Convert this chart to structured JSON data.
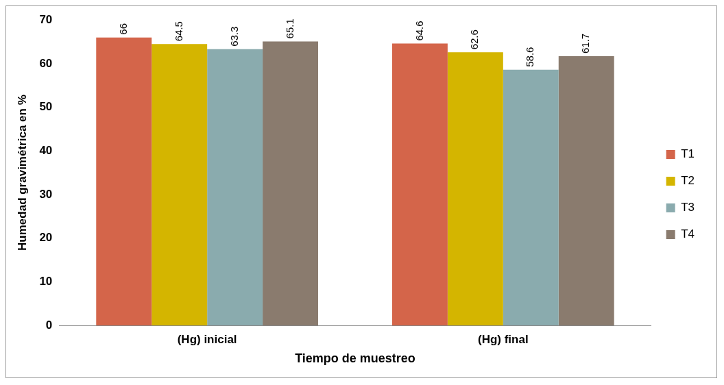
{
  "chart_data": {
    "type": "bar",
    "xlabel": "Tiempo de muestreo",
    "ylabel": "Humedad gravimétrica en %",
    "categories": [
      "(Hg) inicial",
      "(Hg) final"
    ],
    "series": [
      {
        "name": "T1",
        "color": "#d4654a",
        "values": [
          66,
          64.6
        ]
      },
      {
        "name": "T2",
        "color": "#d4b500",
        "values": [
          64.5,
          62.6
        ]
      },
      {
        "name": "T3",
        "color": "#8aabae",
        "values": [
          63.3,
          58.6
        ]
      },
      {
        "name": "T4",
        "color": "#8a7b6e",
        "values": [
          65.1,
          61.7
        ]
      }
    ],
    "ylim": [
      0,
      70
    ],
    "yticks": [
      0,
      10,
      20,
      30,
      40,
      50,
      60,
      70
    ],
    "grid": false,
    "legend": "right",
    "data_labels": true
  }
}
